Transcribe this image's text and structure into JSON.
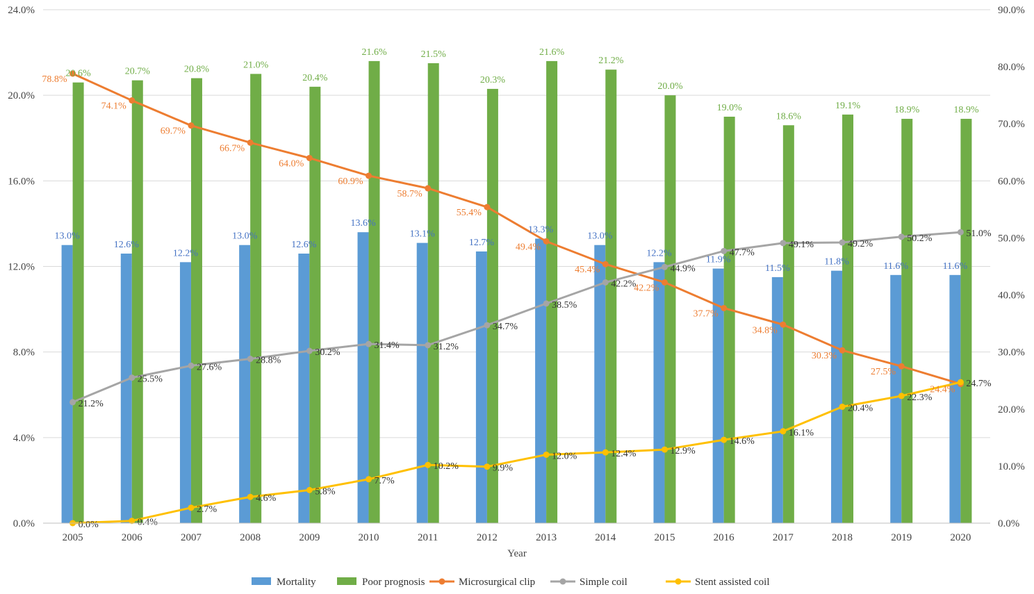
{
  "chart_data": {
    "type": "bar+line",
    "xlabel": "Year",
    "categories": [
      "2005",
      "2006",
      "2007",
      "2008",
      "2009",
      "2010",
      "2011",
      "2012",
      "2013",
      "2014",
      "2015",
      "2016",
      "2017",
      "2018",
      "2019",
      "2020"
    ],
    "left_axis": {
      "ylim": [
        0,
        24
      ],
      "ticks": [
        "0.0%",
        "4.0%",
        "8.0%",
        "12.0%",
        "16.0%",
        "20.0%",
        "24.0%"
      ],
      "tick_values": [
        0,
        4,
        8,
        12,
        16,
        20,
        24
      ]
    },
    "right_axis": {
      "ylim": [
        0,
        90
      ],
      "ticks": [
        "0.0%",
        "10.0%",
        "20.0%",
        "30.0%",
        "40.0%",
        "50.0%",
        "60.0%",
        "70.0%",
        "80.0%",
        "90.0%"
      ],
      "tick_values": [
        0,
        10,
        20,
        30,
        40,
        50,
        60,
        70,
        80,
        90
      ]
    },
    "grid": true,
    "legend_position": "bottom",
    "series": [
      {
        "name": "Mortality",
        "kind": "bar",
        "axis": "left",
        "color": "#5B9BD5",
        "label_color": "#4472C4",
        "values": [
          13.0,
          12.6,
          12.2,
          13.0,
          12.6,
          13.6,
          13.1,
          12.7,
          13.3,
          13.0,
          12.2,
          11.9,
          11.5,
          11.8,
          11.6,
          11.6
        ],
        "labels": [
          "13.0%",
          "12.6%",
          "12.2%",
          "13.0%",
          "12.6%",
          "13.6%",
          "13.1%",
          "12.7%",
          "13.3%",
          "13.0%",
          "12.2%",
          "11.9%",
          "11.5%",
          "11.8%",
          "11.6%",
          "11.6%"
        ]
      },
      {
        "name": "Poor prognosis",
        "kind": "bar",
        "axis": "left",
        "color": "#70AD47",
        "label_color": "#70AD47",
        "values": [
          20.6,
          20.7,
          20.8,
          21.0,
          20.4,
          21.6,
          21.5,
          20.3,
          21.6,
          21.2,
          20.0,
          19.0,
          18.6,
          19.1,
          18.9,
          18.9
        ],
        "labels": [
          "20.6%",
          "20.7%",
          "20.8%",
          "21.0%",
          "20.4%",
          "21.6%",
          "21.5%",
          "20.3%",
          "21.6%",
          "21.2%",
          "20.0%",
          "19.0%",
          "18.6%",
          "19.1%",
          "18.9%",
          "18.9%"
        ]
      },
      {
        "name": "Microsurgical clip",
        "kind": "line",
        "axis": "right",
        "color": "#ED7D31",
        "label_color": "#ED7D31",
        "values": [
          78.8,
          74.1,
          69.7,
          66.7,
          64.0,
          60.9,
          58.7,
          55.4,
          49.4,
          45.4,
          42.2,
          37.7,
          34.8,
          30.3,
          27.5,
          24.4
        ],
        "labels": [
          "78.8%",
          "74.1%",
          "69.7%",
          "66.7%",
          "64.0%",
          "60.9%",
          "58.7%",
          "55.4%",
          "49.4%",
          "45.4%",
          "42.2%",
          "37.7%",
          "34.8%",
          "30.3%",
          "27.5%",
          "24.4%"
        ]
      },
      {
        "name": "Simple coil",
        "kind": "line",
        "axis": "right",
        "color": "#A5A5A5",
        "label_color": "#333333",
        "values": [
          21.2,
          25.5,
          27.6,
          28.8,
          30.2,
          31.4,
          31.2,
          34.7,
          38.5,
          42.2,
          44.9,
          47.7,
          49.1,
          49.2,
          50.2,
          51.0
        ],
        "labels": [
          "21.2%",
          "25.5%",
          "27.6%",
          "28.8%",
          "30.2%",
          "31.4%",
          "31.2%",
          "34.7%",
          "38.5%",
          "42.2%",
          "44.9%",
          "47.7%",
          "49.1%",
          "49.2%",
          "50.2%",
          "51.0%"
        ]
      },
      {
        "name": "Stent assisted coil",
        "kind": "line",
        "axis": "right",
        "color": "#FFC000",
        "label_color": "#333333",
        "values": [
          0.0,
          0.4,
          2.7,
          4.6,
          5.8,
          7.7,
          10.2,
          9.9,
          12.0,
          12.4,
          12.9,
          14.6,
          16.1,
          20.4,
          22.3,
          24.7
        ],
        "labels": [
          "0.0%",
          "0.4%",
          "2.7%",
          "4.6%",
          "5.8%",
          "7.7%",
          "10.2%",
          "9.9%",
          "12.0%",
          "12.4%",
          "12.9%",
          "14.6%",
          "16.1%",
          "20.4%",
          "22.3%",
          "24.7%"
        ]
      }
    ]
  }
}
